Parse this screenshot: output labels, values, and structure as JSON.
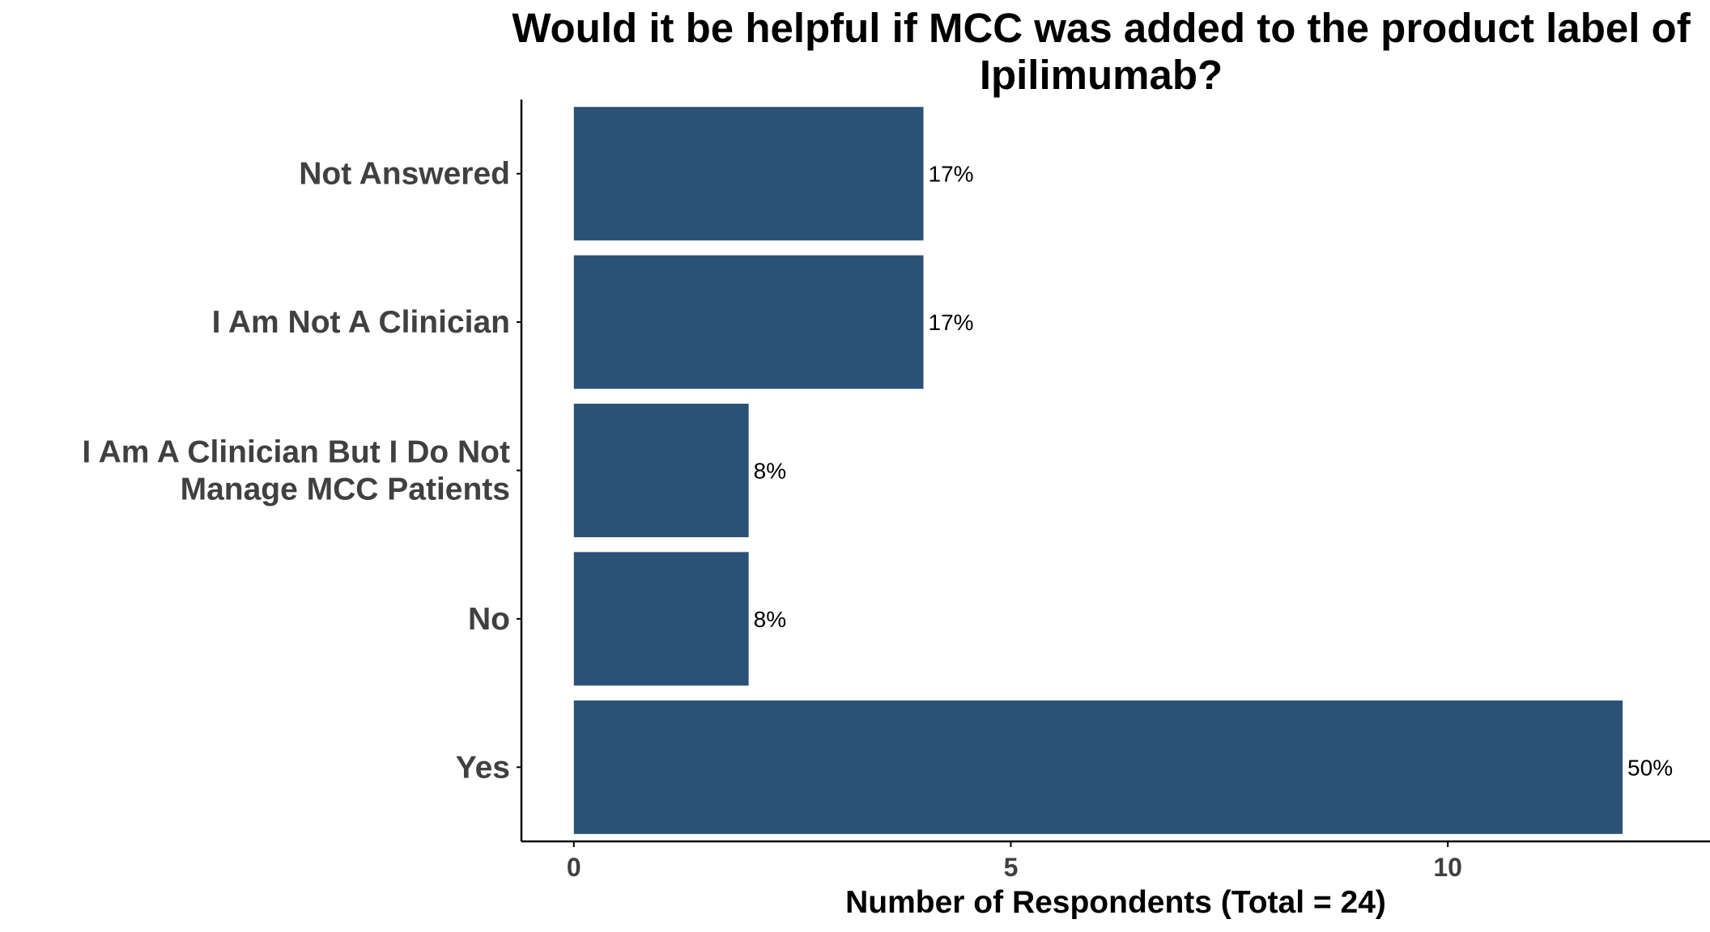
{
  "chart_data": {
    "type": "bar",
    "orientation": "horizontal",
    "title_lines": [
      "Would it be helpful if MCC was added to the product label of",
      "Ipilimumab?"
    ],
    "xlabel": "Number of Respondents (Total = 24)",
    "ylabel": "",
    "categories": [
      {
        "lines": [
          "Yes"
        ]
      },
      {
        "lines": [
          "No"
        ]
      },
      {
        "lines": [
          "I Am A Clinician But I Do Not",
          "Manage MCC Patients"
        ]
      },
      {
        "lines": [
          "I Am Not A Clinician"
        ]
      },
      {
        "lines": [
          "Not Answered"
        ]
      }
    ],
    "values": [
      12,
      2,
      2,
      4,
      4
    ],
    "data_labels": [
      "50%",
      "8%",
      "8%",
      "17%",
      "17%"
    ],
    "xlim": [
      -0.6,
      13
    ],
    "xticks": [
      0,
      5,
      10
    ],
    "xtick_labels": [
      "0",
      "5",
      "10"
    ],
    "grid": false,
    "bar_color": "#2c5176",
    "axis_color": "#000000"
  }
}
